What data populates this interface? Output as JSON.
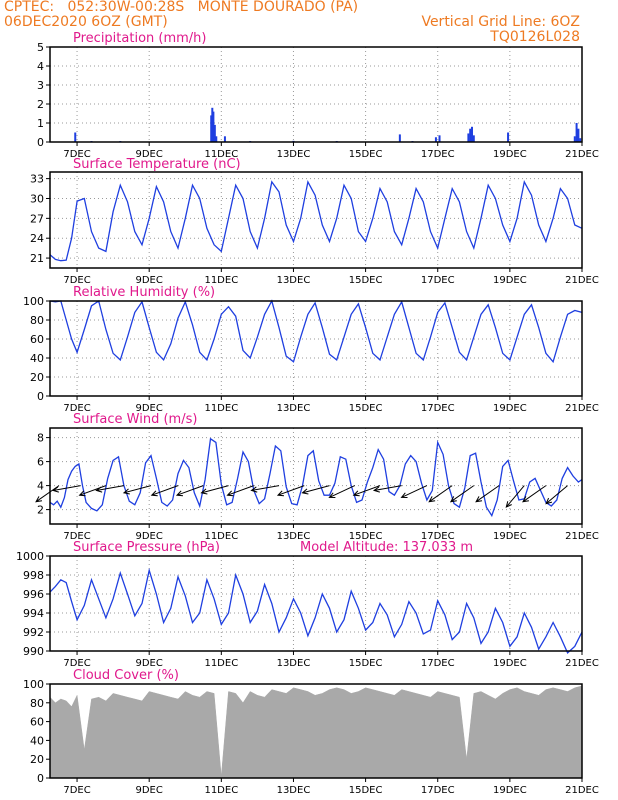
{
  "header": {
    "line1_left": "CPTEC:   052:30W-00:28S   MONTE DOURADO (PA)",
    "line2_left": "06DEC2020 6OZ (GMT)",
    "line2_right": "Vertical Grid Line: 6OZ",
    "line3_right": "TQ0126L028"
  },
  "colors": {
    "header": "#ee7a22",
    "title": "#e0198c",
    "series": "#1f3fe0",
    "cloud": "#a9a9a9",
    "wind_arrow": "#000000",
    "grid": "#9a9a9a"
  },
  "x_axis": {
    "start_day": 6.25,
    "end_day": 21,
    "tick_days": [
      7,
      9,
      11,
      13,
      15,
      17,
      19,
      21
    ],
    "tick_labels": [
      "7DEC",
      "9DEC",
      "11DEC",
      "13DEC",
      "15DEC",
      "17DEC",
      "19DEC",
      "21DEC"
    ]
  },
  "chart_data": [
    {
      "type": "bar",
      "title": "Precipitation (mm/h)",
      "ylim": [
        0,
        5
      ],
      "yticks": [
        0,
        1,
        2,
        3,
        4,
        5
      ],
      "grid": true,
      "bars": [
        [
          6.95,
          0.5
        ],
        [
          7.4,
          0.05
        ],
        [
          8.2,
          0.05
        ],
        [
          10.72,
          1.4
        ],
        [
          10.75,
          1.8
        ],
        [
          10.78,
          1.6
        ],
        [
          10.82,
          0.9
        ],
        [
          10.86,
          0.3
        ],
        [
          11.1,
          0.3
        ],
        [
          11.8,
          0.05
        ],
        [
          13.0,
          0.06
        ],
        [
          14.2,
          0.05
        ],
        [
          15.95,
          0.4
        ],
        [
          16.3,
          0.05
        ],
        [
          16.95,
          0.25
        ],
        [
          17.05,
          0.35
        ],
        [
          17.85,
          0.45
        ],
        [
          17.9,
          0.7
        ],
        [
          17.95,
          0.8
        ],
        [
          18.0,
          0.35
        ],
        [
          18.95,
          0.5
        ],
        [
          20.8,
          0.3
        ],
        [
          20.85,
          1.0
        ],
        [
          20.9,
          0.7
        ],
        [
          20.95,
          0.2
        ]
      ]
    },
    {
      "type": "line",
      "title": "Surface Temperature (nC)",
      "ylim": [
        19.5,
        34
      ],
      "yticks": [
        21,
        24,
        27,
        30,
        33
      ],
      "grid": true,
      "x": [
        6.25,
        6.4,
        6.55,
        6.7,
        6.85,
        7.0,
        7.2,
        7.4,
        7.6,
        7.8,
        8.0,
        8.2,
        8.4,
        8.6,
        8.8,
        9.0,
        9.2,
        9.4,
        9.6,
        9.8,
        10.0,
        10.2,
        10.4,
        10.6,
        10.8,
        11.0,
        11.2,
        11.4,
        11.6,
        11.8,
        12.0,
        12.2,
        12.4,
        12.6,
        12.8,
        13.0,
        13.2,
        13.4,
        13.6,
        13.8,
        14.0,
        14.2,
        14.4,
        14.6,
        14.8,
        15.0,
        15.2,
        15.4,
        15.6,
        15.8,
        16.0,
        16.2,
        16.4,
        16.6,
        16.8,
        17.0,
        17.2,
        17.4,
        17.6,
        17.8,
        18.0,
        18.2,
        18.4,
        18.6,
        18.8,
        19.0,
        19.2,
        19.4,
        19.6,
        19.8,
        20.0,
        20.2,
        20.4,
        20.6,
        20.8,
        21.0
      ],
      "y": [
        21.5,
        20.8,
        20.6,
        20.7,
        24,
        29.6,
        30,
        25,
        22.5,
        22,
        28,
        32,
        29.5,
        25,
        23,
        27,
        31.8,
        29.5,
        25,
        22.5,
        27,
        32,
        30,
        25.5,
        23,
        22,
        27,
        32,
        30,
        25,
        22.5,
        27,
        32.5,
        31,
        26,
        23.5,
        27,
        32.5,
        30.5,
        26,
        23.5,
        27,
        32,
        30,
        25,
        23.5,
        27,
        31.5,
        29.5,
        25,
        23,
        27,
        31.5,
        29.5,
        25,
        22.5,
        27,
        31.5,
        29.5,
        25,
        22.5,
        27,
        32,
        30,
        26,
        23.5,
        27,
        32.5,
        30.5,
        26,
        23.5,
        27,
        31.5,
        30,
        26,
        25.5
      ]
    },
    {
      "type": "line",
      "title": "Relative Humidity (%)",
      "ylim": [
        0,
        100
      ],
      "yticks": [
        0,
        20,
        40,
        60,
        80,
        100
      ],
      "grid": true,
      "x": [
        6.25,
        6.4,
        6.55,
        6.7,
        6.85,
        7.0,
        7.2,
        7.4,
        7.6,
        7.8,
        8.0,
        8.2,
        8.4,
        8.6,
        8.8,
        9.0,
        9.2,
        9.4,
        9.6,
        9.8,
        10.0,
        10.2,
        10.4,
        10.6,
        10.8,
        11.0,
        11.2,
        11.4,
        11.6,
        11.8,
        12.0,
        12.2,
        12.4,
        12.6,
        12.8,
        13.0,
        13.2,
        13.4,
        13.6,
        13.8,
        14.0,
        14.2,
        14.4,
        14.6,
        14.8,
        15.0,
        15.2,
        15.4,
        15.6,
        15.8,
        16.0,
        16.2,
        16.4,
        16.6,
        16.8,
        17.0,
        17.2,
        17.4,
        17.6,
        17.8,
        18.0,
        18.2,
        18.4,
        18.6,
        18.8,
        19.0,
        19.2,
        19.4,
        19.6,
        19.8,
        20.0,
        20.2,
        20.4,
        20.6,
        20.8,
        21.0
      ],
      "y": [
        100,
        99,
        100,
        80,
        60,
        46,
        70,
        95,
        100,
        70,
        45,
        38,
        62,
        88,
        99,
        72,
        46,
        38,
        55,
        82,
        99,
        75,
        46,
        38,
        60,
        86,
        94,
        84,
        48,
        40,
        62,
        86,
        100,
        72,
        42,
        36,
        62,
        86,
        98,
        72,
        44,
        38,
        62,
        86,
        97,
        72,
        45,
        38,
        62,
        86,
        99,
        72,
        45,
        38,
        62,
        88,
        98,
        72,
        46,
        38,
        62,
        86,
        96,
        72,
        45,
        38,
        62,
        86,
        96,
        72,
        45,
        36,
        62,
        86,
        90,
        88
      ]
    },
    {
      "type": "line",
      "title": "Surface Wind (m/s)",
      "ylim": [
        0.8,
        8.8
      ],
      "yticks": [
        2,
        4,
        6,
        8
      ],
      "grid": true,
      "x": [
        6.25,
        6.35,
        6.45,
        6.55,
        6.65,
        6.75,
        6.85,
        6.95,
        7.05,
        7.15,
        7.25,
        7.4,
        7.55,
        7.7,
        7.85,
        8.0,
        8.15,
        8.3,
        8.45,
        8.6,
        8.75,
        8.9,
        9.05,
        9.2,
        9.35,
        9.5,
        9.65,
        9.8,
        9.95,
        10.1,
        10.25,
        10.4,
        10.55,
        10.7,
        10.85,
        11.0,
        11.15,
        11.3,
        11.45,
        11.6,
        11.75,
        11.9,
        12.05,
        12.2,
        12.35,
        12.5,
        12.65,
        12.8,
        12.95,
        13.1,
        13.25,
        13.4,
        13.55,
        13.7,
        13.85,
        14.0,
        14.15,
        14.3,
        14.45,
        14.6,
        14.75,
        14.9,
        15.05,
        15.2,
        15.35,
        15.5,
        15.65,
        15.8,
        15.95,
        16.1,
        16.25,
        16.4,
        16.55,
        16.7,
        16.85,
        17.0,
        17.15,
        17.3,
        17.45,
        17.6,
        17.75,
        17.9,
        18.05,
        18.2,
        18.35,
        18.5,
        18.65,
        18.8,
        18.95,
        19.1,
        19.25,
        19.4,
        19.55,
        19.7,
        19.85,
        20.0,
        20.15,
        20.3,
        20.45,
        20.6,
        20.75,
        20.9,
        21.0
      ],
      "y": [
        2.6,
        2.4,
        2.7,
        2.2,
        3.0,
        4.5,
        5.2,
        5.6,
        5.8,
        4.0,
        2.6,
        2.1,
        1.9,
        2.4,
        4.6,
        6.1,
        6.4,
        4.0,
        2.7,
        2.4,
        3.4,
        5.9,
        6.5,
        4.6,
        2.6,
        2.3,
        2.8,
        5.0,
        6.1,
        5.5,
        3.4,
        2.3,
        4.5,
        7.9,
        7.6,
        4.1,
        2.4,
        2.6,
        4.6,
        6.8,
        6.0,
        3.6,
        2.5,
        2.9,
        5.0,
        7.3,
        6.9,
        3.9,
        2.5,
        2.4,
        4.0,
        6.5,
        6.9,
        4.4,
        3.2,
        3.2,
        4.2,
        6.4,
        6.2,
        4.0,
        2.6,
        2.8,
        4.3,
        5.5,
        7.0,
        6.2,
        3.5,
        3.2,
        4.0,
        5.8,
        6.5,
        6.0,
        4.2,
        2.8,
        3.6,
        7.6,
        6.6,
        4.0,
        2.5,
        2.2,
        3.8,
        6.5,
        6.7,
        4.3,
        2.2,
        1.5,
        2.8,
        5.6,
        6.1,
        4.4,
        2.8,
        2.9,
        4.3,
        4.6,
        3.6,
        2.6,
        2.3,
        2.8,
        4.6,
        5.5,
        4.8,
        4.3,
        4.5
      ]
    },
    {
      "type": "line",
      "title": "Surface Pressure (hPa)",
      "annotation": "Model Altitude: 137.033 m",
      "ylim": [
        990,
        1000
      ],
      "yticks": [
        990,
        992,
        994,
        996,
        998,
        1000
      ],
      "grid": true,
      "x": [
        6.25,
        6.4,
        6.55,
        6.7,
        6.85,
        7.0,
        7.2,
        7.4,
        7.6,
        7.8,
        8.0,
        8.2,
        8.4,
        8.6,
        8.8,
        9.0,
        9.2,
        9.4,
        9.6,
        9.8,
        10.0,
        10.2,
        10.4,
        10.6,
        10.8,
        11.0,
        11.2,
        11.4,
        11.6,
        11.8,
        12.0,
        12.2,
        12.4,
        12.6,
        12.8,
        13.0,
        13.2,
        13.4,
        13.6,
        13.8,
        14.0,
        14.2,
        14.4,
        14.6,
        14.8,
        15.0,
        15.2,
        15.4,
        15.6,
        15.8,
        16.0,
        16.2,
        16.4,
        16.6,
        16.8,
        17.0,
        17.2,
        17.4,
        17.6,
        17.8,
        18.0,
        18.2,
        18.4,
        18.6,
        18.8,
        19.0,
        19.2,
        19.4,
        19.6,
        19.8,
        20.0,
        20.2,
        20.4,
        20.6,
        20.8,
        21.0
      ],
      "y": [
        996.2,
        996.8,
        997.5,
        997.2,
        995.2,
        993.3,
        994.8,
        997.5,
        995.5,
        993.5,
        995.5,
        998.2,
        996.0,
        993.7,
        995.0,
        998.5,
        996.0,
        993.0,
        994.5,
        997.8,
        995.8,
        993.0,
        994.0,
        997.5,
        995.5,
        992.8,
        994.0,
        998.0,
        996.0,
        993.0,
        994.2,
        997.0,
        995.0,
        992.0,
        993.5,
        995.5,
        994.0,
        991.6,
        993.5,
        996.0,
        994.5,
        992.0,
        993.3,
        996.3,
        994.5,
        992.2,
        993.0,
        995.0,
        993.8,
        991.5,
        992.8,
        995.2,
        994.0,
        991.8,
        992.2,
        995.3,
        993.8,
        991.2,
        992.0,
        995.0,
        993.5,
        990.8,
        992.0,
        994.5,
        993.0,
        990.5,
        991.5,
        994.0,
        992.5,
        990.2,
        991.5,
        993.0,
        991.5,
        989.8,
        990.5,
        992.0
      ]
    },
    {
      "type": "area",
      "title": "Cloud Cover (%)",
      "ylim": [
        0,
        100
      ],
      "yticks": [
        0,
        20,
        40,
        60,
        80,
        100
      ],
      "grid": false,
      "x": [
        6.25,
        6.4,
        6.55,
        6.7,
        6.85,
        7.0,
        7.2,
        7.4,
        7.6,
        7.8,
        8.0,
        8.2,
        8.4,
        8.6,
        8.8,
        9.0,
        9.2,
        9.4,
        9.6,
        9.8,
        10.0,
        10.2,
        10.4,
        10.6,
        10.8,
        11.0,
        11.2,
        11.4,
        11.6,
        11.8,
        12.0,
        12.2,
        12.4,
        12.6,
        12.8,
        13.0,
        13.2,
        13.4,
        13.6,
        13.8,
        14.0,
        14.2,
        14.4,
        14.6,
        14.8,
        15.0,
        15.2,
        15.4,
        15.6,
        15.8,
        16.0,
        16.2,
        16.4,
        16.6,
        16.8,
        17.0,
        17.2,
        17.4,
        17.6,
        17.8,
        18.0,
        18.2,
        18.4,
        18.6,
        18.8,
        19.0,
        19.2,
        19.4,
        19.6,
        19.8,
        20.0,
        20.2,
        20.4,
        20.6,
        20.8,
        21.0
      ],
      "y": [
        86,
        80,
        84,
        82,
        76,
        88,
        30,
        84,
        86,
        82,
        90,
        88,
        86,
        84,
        82,
        92,
        90,
        88,
        86,
        84,
        92,
        88,
        86,
        92,
        90,
        2,
        92,
        90,
        80,
        92,
        88,
        86,
        94,
        92,
        90,
        96,
        94,
        92,
        88,
        90,
        94,
        96,
        94,
        90,
        92,
        96,
        94,
        92,
        90,
        88,
        94,
        92,
        90,
        88,
        86,
        92,
        90,
        88,
        86,
        20,
        90,
        92,
        88,
        84,
        90,
        94,
        96,
        92,
        90,
        88,
        94,
        96,
        94,
        92,
        96,
        98
      ]
    }
  ],
  "wind_arrows": [
    {
      "day": 6.5,
      "dir_deg": 215
    },
    {
      "day": 7.1,
      "dir_deg": 190
    },
    {
      "day": 7.8,
      "dir_deg": 200
    },
    {
      "day": 8.3,
      "dir_deg": 190
    },
    {
      "day": 9.05,
      "dir_deg": 195
    },
    {
      "day": 9.8,
      "dir_deg": 200
    },
    {
      "day": 10.5,
      "dir_deg": 200
    },
    {
      "day": 11.2,
      "dir_deg": 195
    },
    {
      "day": 11.9,
      "dir_deg": 200
    },
    {
      "day": 12.6,
      "dir_deg": 190
    },
    {
      "day": 13.3,
      "dir_deg": 200
    },
    {
      "day": 14.0,
      "dir_deg": 195
    },
    {
      "day": 14.7,
      "dir_deg": 205
    },
    {
      "day": 15.4,
      "dir_deg": 200
    },
    {
      "day": 16.0,
      "dir_deg": 190
    },
    {
      "day": 16.7,
      "dir_deg": 205
    },
    {
      "day": 17.4,
      "dir_deg": 215
    },
    {
      "day": 18.0,
      "dir_deg": 215
    },
    {
      "day": 18.7,
      "dir_deg": 215
    },
    {
      "day": 19.4,
      "dir_deg": 230
    },
    {
      "day": 20.0,
      "dir_deg": 215
    },
    {
      "day": 20.6,
      "dir_deg": 220
    }
  ]
}
